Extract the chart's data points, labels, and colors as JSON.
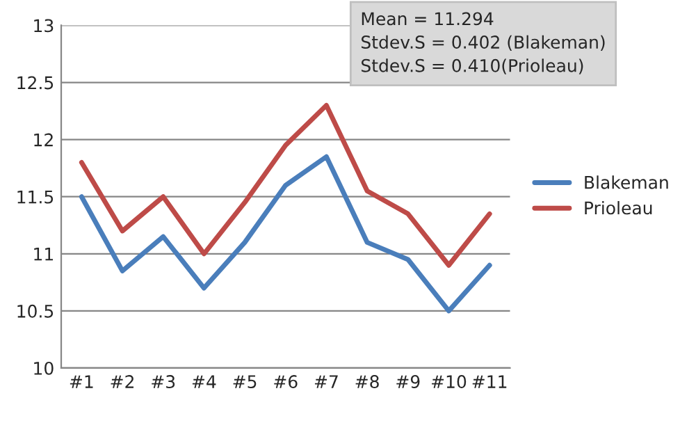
{
  "chart_data": {
    "type": "line",
    "categories": [
      "#1",
      "#2",
      "#3",
      "#4",
      "#5",
      "#6",
      "#7",
      "#8",
      "#9",
      "#10",
      "#11"
    ],
    "series": [
      {
        "name": "Blakeman",
        "color": "#4a7ebb",
        "values": [
          11.5,
          10.85,
          11.15,
          10.7,
          11.1,
          11.6,
          11.85,
          11.1,
          10.95,
          10.5,
          10.9
        ]
      },
      {
        "name": "Prioleau",
        "color": "#be4b48",
        "values": [
          11.8,
          11.2,
          11.5,
          11.0,
          11.45,
          11.95,
          12.3,
          11.55,
          11.35,
          10.9,
          11.35
        ]
      }
    ],
    "ylim": [
      10,
      13
    ],
    "yticks": [
      10,
      10.5,
      11,
      11.5,
      12,
      12.5,
      13
    ],
    "grid": "y",
    "legend": "right",
    "annotations": [
      "Mean = 11.294\nStdev.S = 0.402 (Blakeman)\nStdev.S = 0.410(Prioleau)"
    ]
  }
}
